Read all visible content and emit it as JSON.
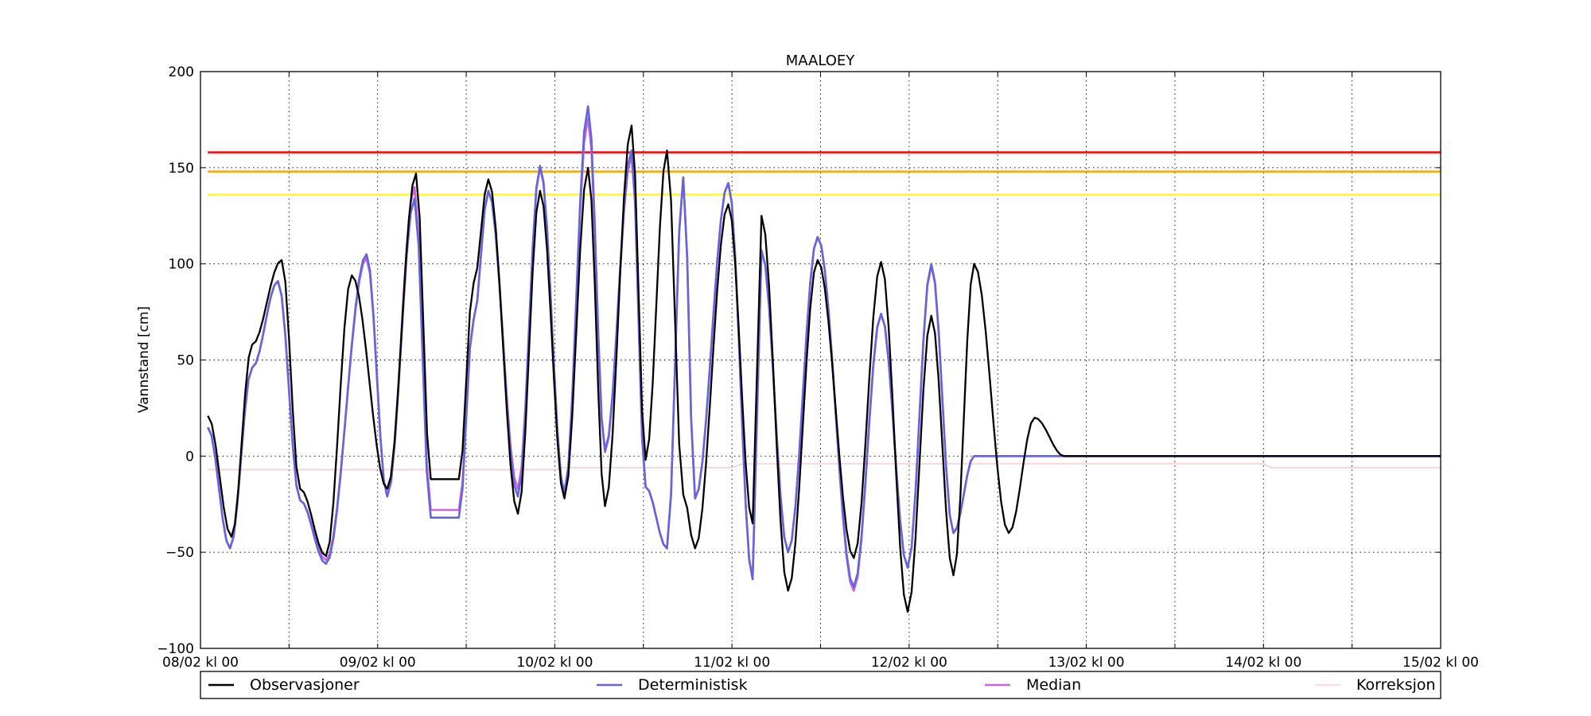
{
  "chart_data": {
    "type": "line",
    "title": "MAALOEY",
    "xlabel": "",
    "ylabel": "Vannstand [cm]",
    "ylim": [
      -100,
      200
    ],
    "xlim": [
      0,
      168
    ],
    "y_ticks": [
      -100,
      -50,
      0,
      50,
      100,
      150,
      200
    ],
    "x_ticks": [
      {
        "at": 0,
        "label": "08/02 kl 00"
      },
      {
        "at": 24,
        "label": "09/02 kl 00"
      },
      {
        "at": 48,
        "label": "10/02 kl 00"
      },
      {
        "at": 72,
        "label": "11/02 kl 00"
      },
      {
        "at": 96,
        "label": "12/02 kl 00"
      },
      {
        "at": 120,
        "label": "13/02 kl 00"
      },
      {
        "at": 144,
        "label": "14/02 kl 00"
      },
      {
        "at": 168,
        "label": "15/02 kl 00"
      }
    ],
    "grid": true,
    "legend_position": "bottom",
    "threshold_lines": [
      {
        "value": 158,
        "color": "#ff0000"
      },
      {
        "value": 148,
        "color": "#ffa500"
      },
      {
        "value": 136,
        "color": "#ffff00"
      }
    ],
    "series": [
      {
        "name": "Observasjoner",
        "color": "#000000",
        "x": [
          1,
          4.2,
          7,
          11,
          13.5,
          17,
          20.5,
          25.3,
          29.2,
          31.2,
          35,
          37,
          39,
          43,
          46,
          49.3,
          52.5,
          54.8,
          58.4,
          60.3,
          63.2,
          65.4,
          67,
          71.5,
          74.8,
          76,
          79.6,
          83.6,
          88.5,
          92.2,
          95.8,
          99,
          102,
          104.8,
          109.5,
          113,
          117,
          121.6,
          125,
          129.4,
          133,
          137,
          141,
          145.3,
          149.4,
          153.4,
          157,
          161.2,
          164.3,
          168
        ],
        "y": [
          21,
          -42,
          58,
          102,
          -17,
          -52,
          94,
          -17,
          147,
          -12,
          -12,
          90,
          144,
          -30,
          138,
          -22,
          150,
          -26,
          172,
          -2,
          159,
          -20,
          -48,
          131,
          -35,
          125,
          -70,
          102,
          -53,
          101,
          -81,
          73,
          -62,
          100,
          -40,
          20,
          0,
          0,
          0,
          0,
          0,
          0,
          0,
          0,
          0,
          0,
          0,
          0,
          0,
          0
        ]
      },
      {
        "name": "Deterministisk",
        "color": "#6464dc",
        "x": [
          1,
          4,
          7,
          10.5,
          13.5,
          17,
          22.5,
          25.3,
          29,
          31.2,
          35,
          37,
          39,
          43,
          46,
          49.3,
          52.5,
          54.8,
          58.4,
          60.3,
          63.2,
          65.4,
          67,
          71.5,
          74.8,
          76,
          79.6,
          83.6,
          88.5,
          92.2,
          95.8,
          99,
          102,
          104.8,
          109.5,
          113,
          117,
          121.6,
          125,
          129.4,
          133,
          137,
          141,
          145.3,
          149.4,
          153.4,
          157,
          161.2,
          164.3,
          168
        ],
        "y": [
          15,
          -48,
          46,
          91,
          -23,
          -56,
          105,
          -21,
          134,
          -32,
          -32,
          71,
          138,
          -21,
          151,
          -19,
          182,
          3,
          159,
          -16,
          -48,
          145,
          -22,
          142,
          -64,
          107,
          -50,
          114,
          -68,
          74,
          -58,
          100,
          -40,
          0,
          0,
          0,
          0,
          0,
          0,
          0,
          0,
          0,
          0,
          0,
          0,
          0,
          0,
          0,
          0,
          0
        ]
      },
      {
        "name": "Median",
        "color": "#c864dc",
        "x": [
          1,
          4,
          7,
          10.5,
          13.5,
          17,
          22.5,
          25.3,
          29,
          31.2,
          35,
          37,
          39,
          43,
          46,
          49.3,
          52.5,
          54.8,
          58.4,
          60.3,
          63.2,
          65.4,
          67,
          71.5,
          74.8,
          76,
          79.6,
          83.6,
          88.5,
          92.2,
          95.8,
          99,
          102,
          104.8,
          109.5,
          113,
          117,
          121.6,
          125,
          129.4,
          133,
          137,
          141,
          145.3,
          149.4,
          153.4,
          157,
          161.2,
          164.3,
          168
        ],
        "y": [
          15,
          -48,
          46,
          91,
          -23,
          -54,
          103,
          -21,
          140,
          -28,
          -28,
          71,
          138,
          -17,
          150,
          -19,
          176,
          2,
          156,
          -16,
          -48,
          145,
          -22,
          142,
          -64,
          107,
          -50,
          114,
          -70,
          74,
          -58,
          99,
          -40,
          0,
          0,
          0,
          0,
          0,
          0,
          0,
          0,
          0,
          0,
          0,
          0,
          0,
          0,
          0,
          0,
          0
        ]
      },
      {
        "name": "Korreksjon",
        "color": "#ffc0cb",
        "x": [
          1,
          48,
          48.8,
          72,
          73.5,
          120,
          121,
          144,
          145,
          168
        ],
        "y": [
          -7,
          -7,
          -6,
          -6,
          -4,
          -4,
          -4,
          -4,
          -6,
          -6
        ]
      }
    ]
  }
}
